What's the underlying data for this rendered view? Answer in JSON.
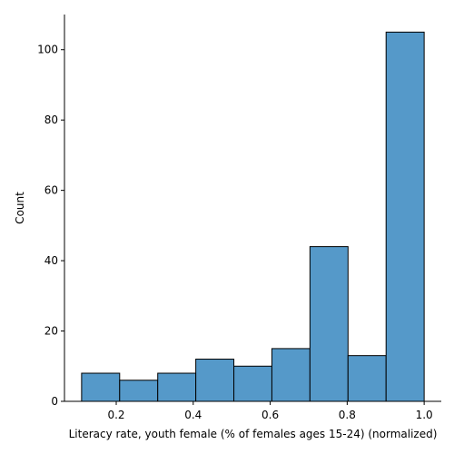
{
  "chart_data": {
    "type": "bar",
    "bin_edges": [
      0.11,
      0.2089,
      0.3078,
      0.4067,
      0.5056,
      0.6044,
      0.7033,
      0.8022,
      0.9011,
      1.0
    ],
    "values": [
      8,
      6,
      8,
      12,
      10,
      15,
      44,
      13,
      105
    ],
    "xlabel": "Literacy rate, youth female (% of females ages 15-24) (normalized)",
    "ylabel": "Count",
    "xlim": [
      0.0655,
      1.0445
    ],
    "ylim": [
      0,
      110
    ],
    "xticks": [
      0.2,
      0.4,
      0.6,
      0.8,
      1.0
    ],
    "xtick_labels": [
      "0.2",
      "0.4",
      "0.6",
      "0.8",
      "1.0"
    ],
    "yticks": [
      0,
      20,
      40,
      60,
      80,
      100
    ],
    "ytick_labels": [
      "0",
      "20",
      "40",
      "60",
      "80",
      "100"
    ],
    "grid": false,
    "bar_color": "#5599c9",
    "edge_color": "#000000"
  }
}
